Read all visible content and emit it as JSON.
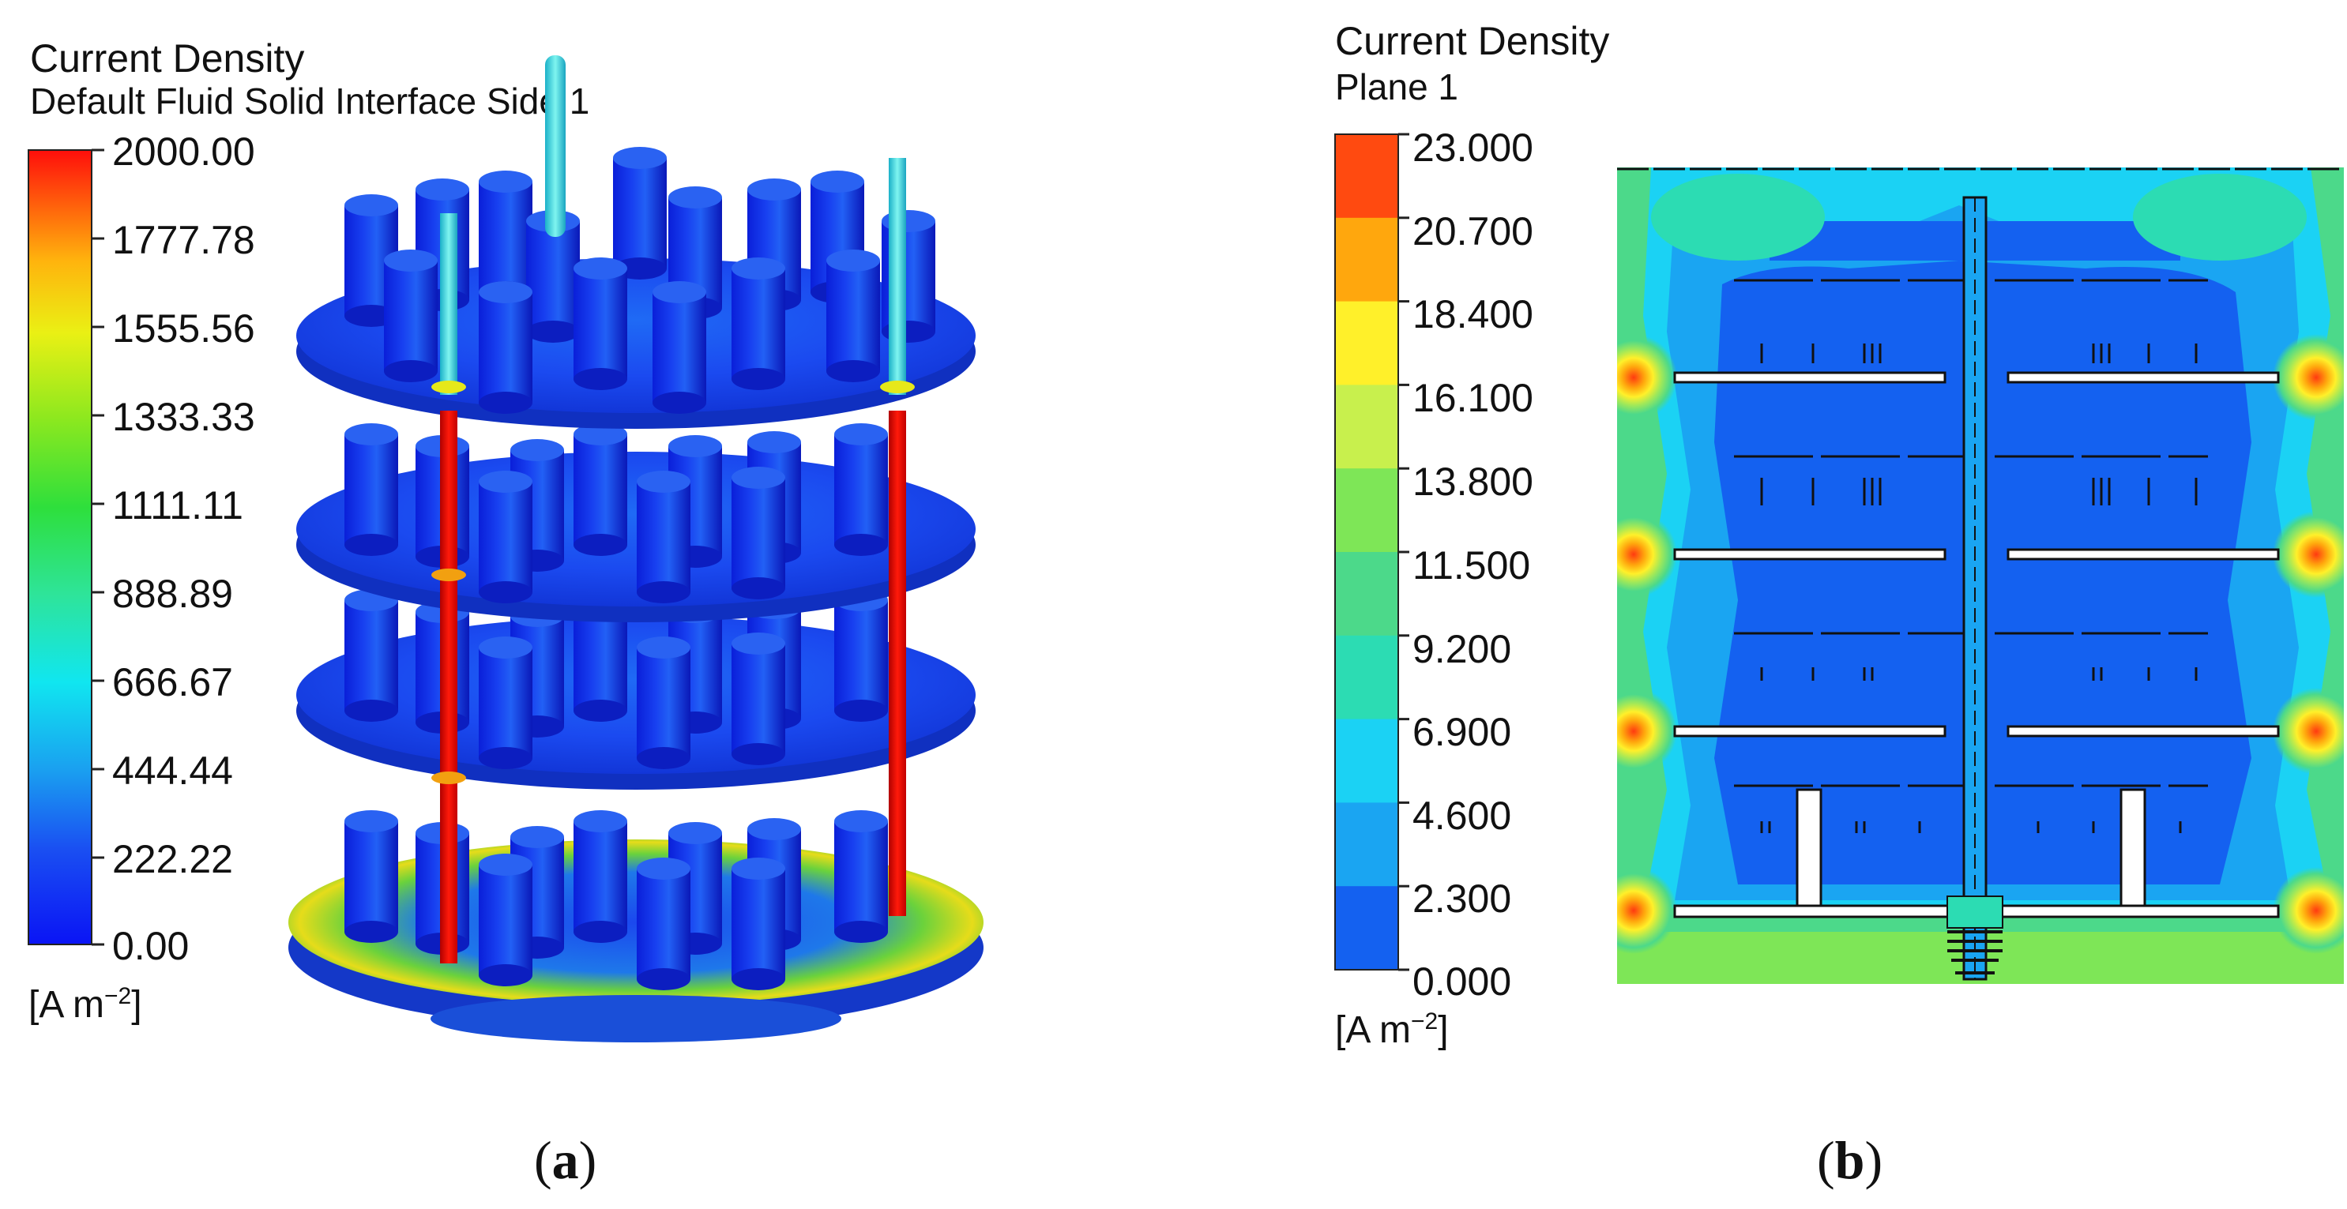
{
  "panel_a": {
    "title": "Current Density",
    "subtitle": "Default Fluid Solid Interface Side 1",
    "legend_ticks": [
      "2000.00",
      "1777.78",
      "1555.56",
      "1333.33",
      "1111.11",
      "888.89",
      "666.67",
      "444.44",
      "222.22",
      "0.00"
    ],
    "unit_base": "[A m",
    "unit_exp": "−2",
    "unit_close": "]",
    "caption_open": "(",
    "caption_letter": "a",
    "caption_close": ")",
    "colormap": "smooth-rainbow",
    "legend_min": 0.0,
    "legend_max": 2000.0
  },
  "panel_b": {
    "title": "Current Density",
    "subtitle": "Plane 1",
    "legend_ticks": [
      "23.000",
      "20.700",
      "18.400",
      "16.100",
      "13.800",
      "11.500",
      "9.200",
      "6.900",
      "4.600",
      "2.300",
      "0.000"
    ],
    "legend_band_colors": [
      "#ff4a10",
      "#ffa70d",
      "#fff02a",
      "#c8f04d",
      "#7ee657",
      "#4cd98a",
      "#2cdcb3",
      "#1bd2f4",
      "#1aa5f2",
      "#1461f0"
    ],
    "unit_base": "[A m",
    "unit_exp": "−2",
    "unit_close": "]",
    "caption_open": "(",
    "caption_letter": "b",
    "caption_close": ")",
    "legend_min": 0.0,
    "legend_max": 23.0
  }
}
